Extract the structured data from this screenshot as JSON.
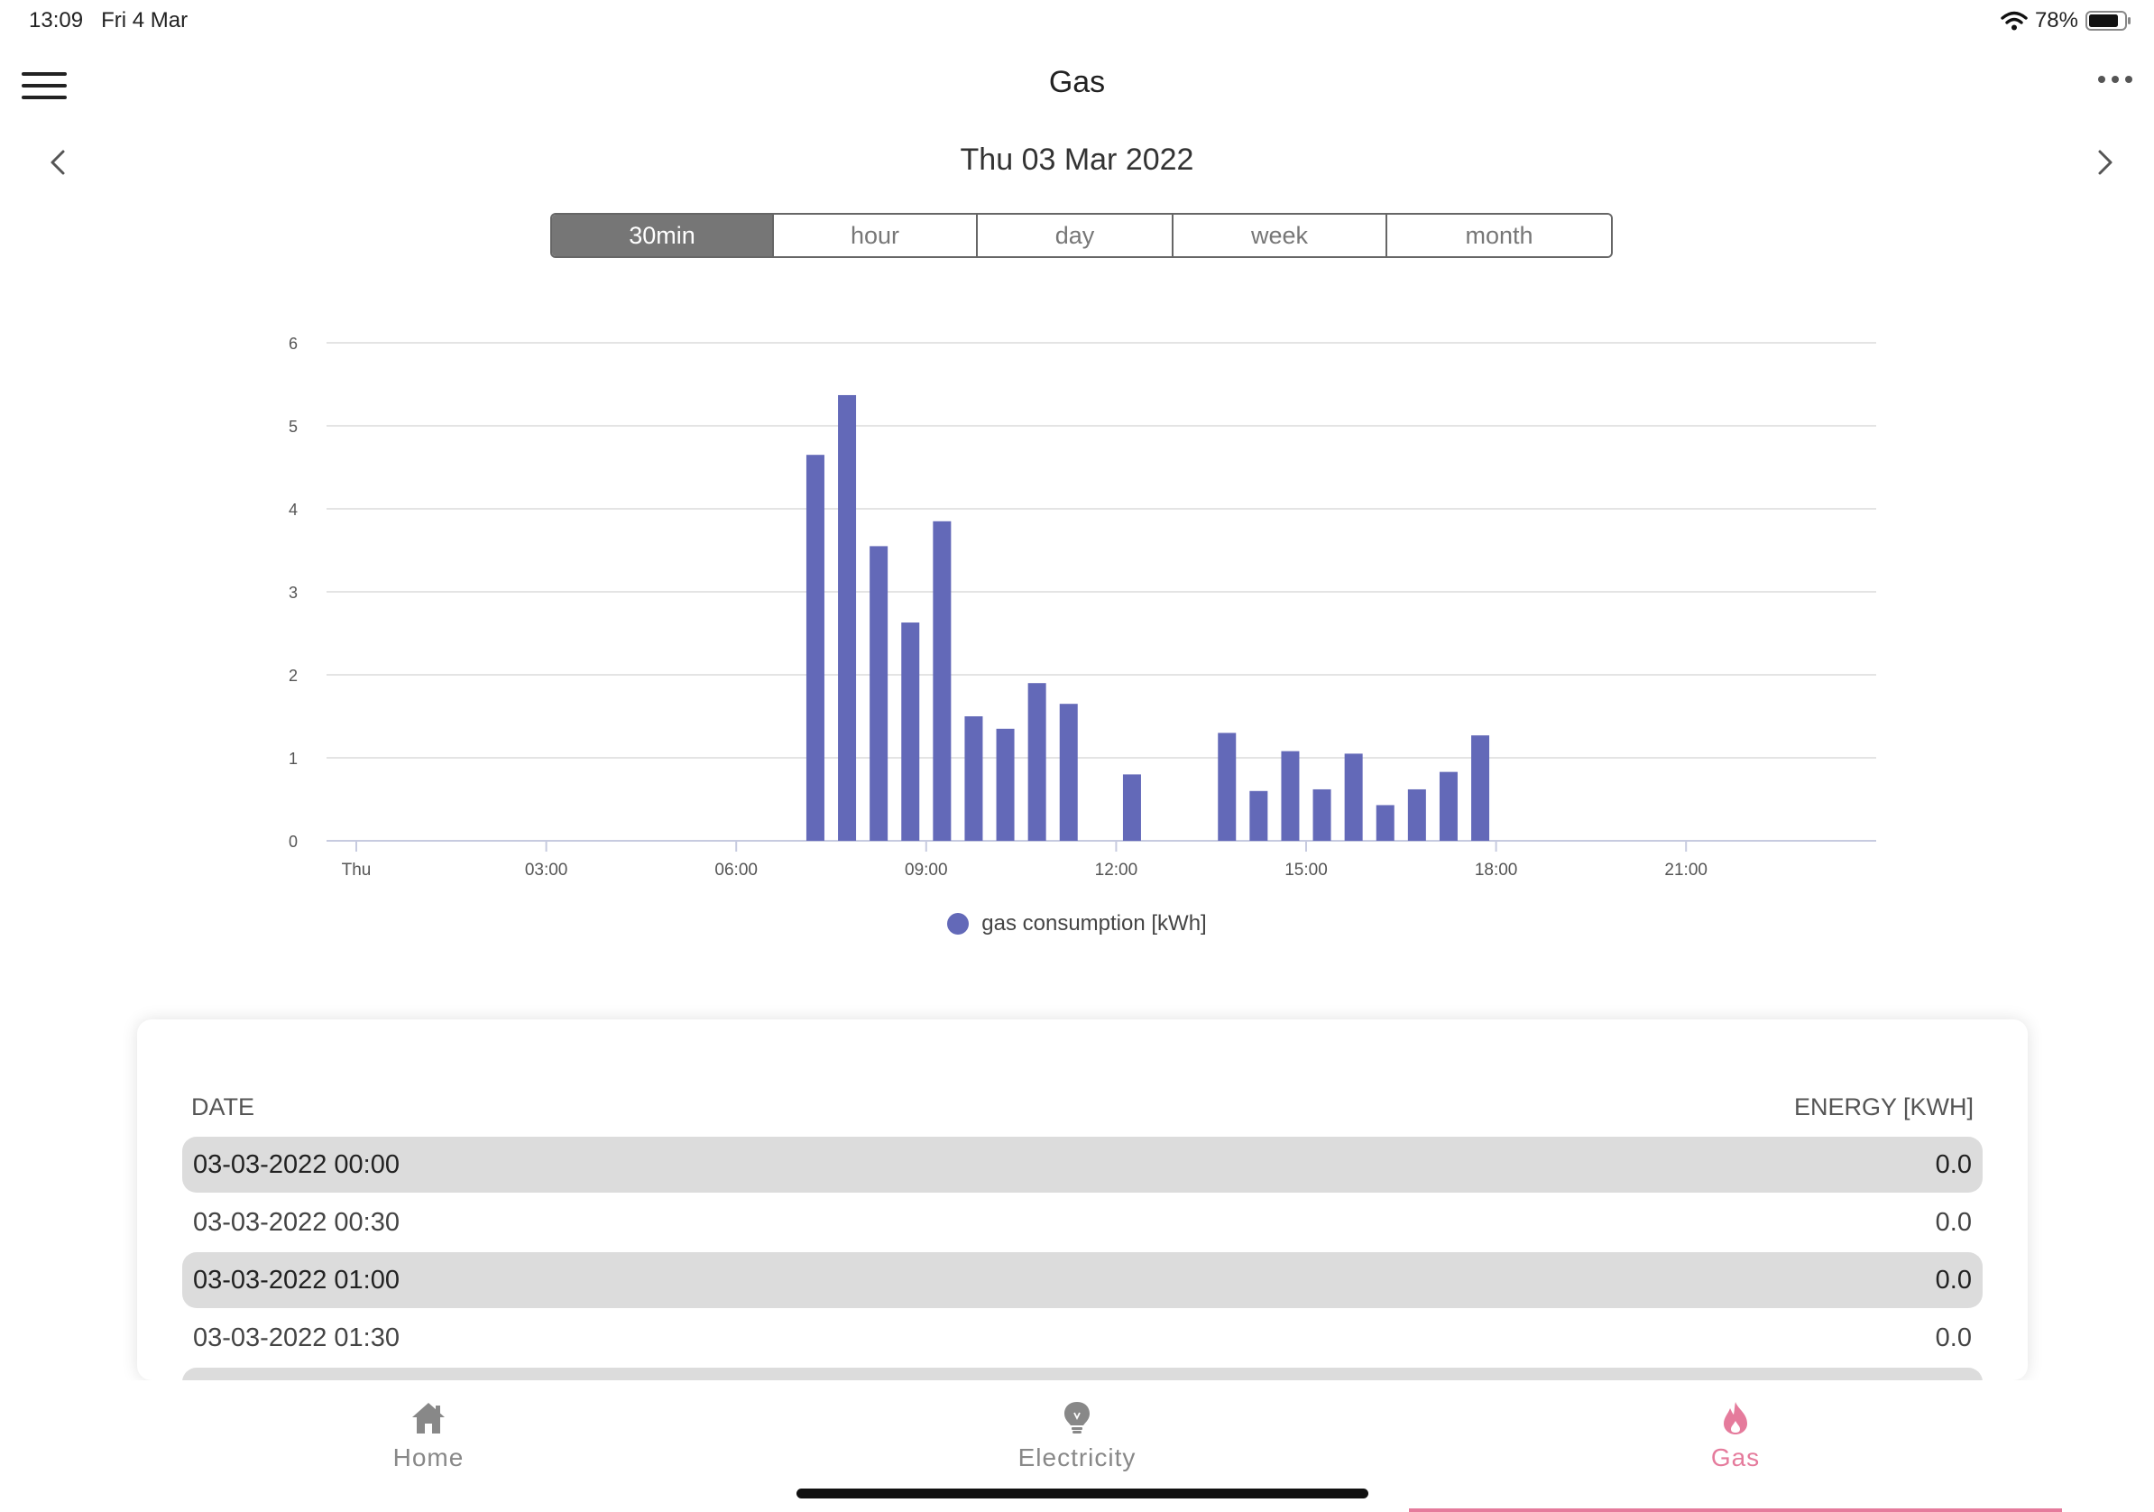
{
  "status_bar": {
    "time": "13:09",
    "date": "Fri 4 Mar",
    "battery": "78%"
  },
  "header": {
    "title": "Gas"
  },
  "date_nav": {
    "label": "Thu 03 Mar 2022"
  },
  "segments": [
    {
      "label": "30min",
      "active": true
    },
    {
      "label": "hour",
      "active": false
    },
    {
      "label": "day",
      "active": false
    },
    {
      "label": "week",
      "active": false
    },
    {
      "label": "month",
      "active": false
    }
  ],
  "chart_data": {
    "type": "bar",
    "ylim": [
      0,
      6
    ],
    "y_ticks": [
      "0",
      "1",
      "2",
      "3",
      "4",
      "5",
      "6"
    ],
    "x_ticks": [
      "Thu",
      "03:00",
      "06:00",
      "09:00",
      "12:00",
      "15:00",
      "18:00",
      "21:00"
    ],
    "grid": true,
    "legend_position": "bottom",
    "color": "#6369b8",
    "series": [
      {
        "name": "gas consumption [kWh]",
        "values": [
          0,
          0,
          0,
          0,
          0,
          0,
          0,
          0,
          0,
          0,
          0,
          0,
          0,
          0,
          4.65,
          5.37,
          3.55,
          2.63,
          3.85,
          1.5,
          1.35,
          1.9,
          1.65,
          0,
          0.8,
          0,
          0,
          1.3,
          0.6,
          1.08,
          0.62,
          1.05,
          0.43,
          0.62,
          0.83,
          1.27,
          0,
          0,
          0,
          0,
          0,
          0,
          0,
          0,
          0,
          0,
          0,
          0
        ]
      }
    ]
  },
  "table": {
    "col_date": "DATE",
    "col_energy": "ENERGY [KWH]",
    "rows": [
      {
        "date": "03-03-2022 00:00",
        "energy": "0.0"
      },
      {
        "date": "03-03-2022 00:30",
        "energy": "0.0"
      },
      {
        "date": "03-03-2022 01:00",
        "energy": "0.0"
      },
      {
        "date": "03-03-2022 01:30",
        "energy": "0.0"
      }
    ]
  },
  "tabbar": {
    "home": "Home",
    "electricity": "Electricity",
    "gas": "Gas",
    "accent": "#e57b9c"
  }
}
